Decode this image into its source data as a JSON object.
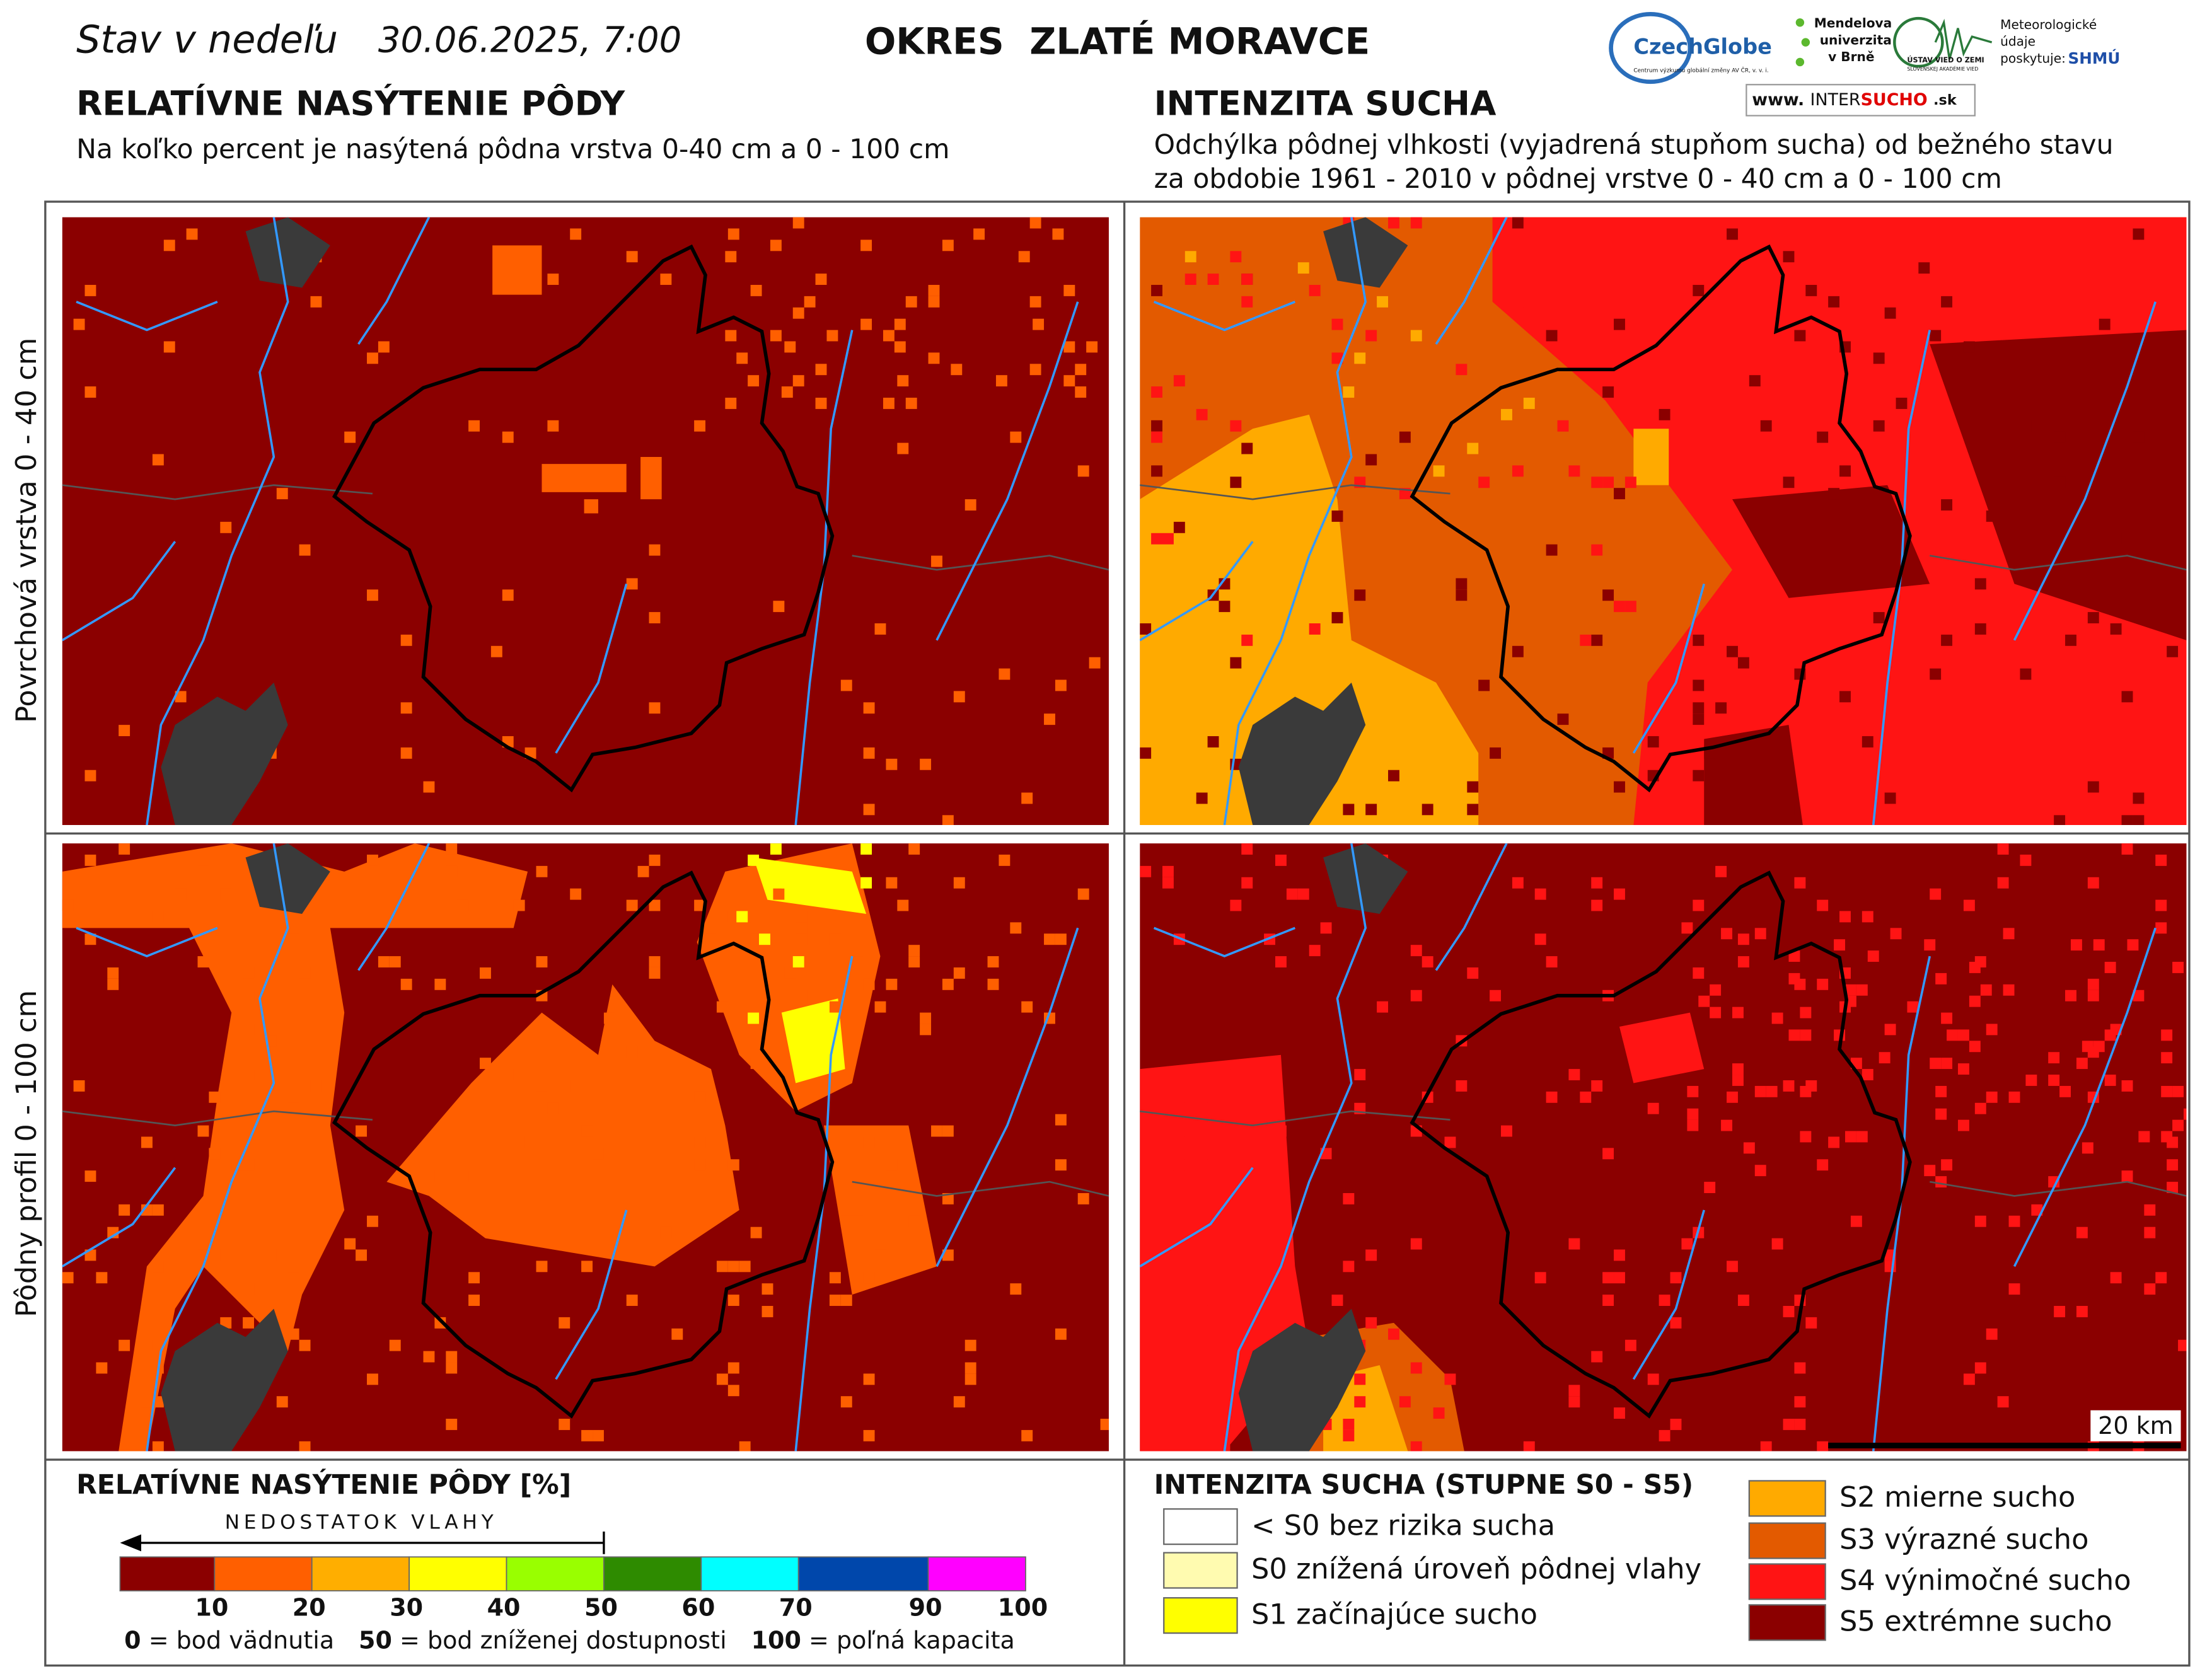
{
  "header": {
    "status": "Stav v nedeľu",
    "date": "30.06.2025, 7:00",
    "district": "OKRES  ZLATÉ MORAVCE"
  },
  "logos": {
    "czechglobe": "CzechGlobe",
    "czechglobe_note": "Centrum výzkumu globální změny AV ČR, v. v. i.",
    "mendel": [
      "Mendelova",
      "univerzita",
      "v Brně"
    ],
    "uvz": "ÚSTAV VIED O ZEMI",
    "uvz_note": "SLOVENSKEJ AKADÉMIE VIED",
    "meteo": [
      "Meteorologické",
      "údaje",
      "poskytuje:"
    ],
    "shmu": "SHMÚ",
    "intersucho": [
      "www.",
      "INTER",
      "SUCHO",
      ".sk"
    ]
  },
  "left": {
    "title": "RELATÍVNE NASÝTENIE PÔDY",
    "subtitle": "Na koľko percent je nasýtená pôdna vrstva 0-40 cm a 0 - 100 cm"
  },
  "right": {
    "title": "INTENZITA SUCHA",
    "subtitle": [
      "Odchýlka pôdnej vlhkosti (vyjadrená stupňom sucha) od bežného stavu",
      "za obdobie 1961 - 2010 v pôdnej vrstve 0 - 40 cm a 0 - 100 cm"
    ]
  },
  "rows": [
    "Povrchová vrstva 0 - 40 cm",
    "Pôdny profil 0 - 100 cm"
  ],
  "scale_bar": "20 km",
  "legend_left": {
    "title": "RELATÍVNE NASÝTENIE PÔDY [%]",
    "arrow": "NEDOSTATOK VLAHY",
    "colors": [
      "#8b0000",
      "#ff5f00",
      "#ffae00",
      "#ffff00",
      "#99ff00",
      "#2e8b00",
      "#00ffff",
      "#0047ab",
      "#ff00ff"
    ],
    "ticks": [
      10,
      20,
      30,
      40,
      50,
      60,
      70,
      90,
      100
    ],
    "notes": [
      {
        "value": "0",
        "text": "= bod vädnutia"
      },
      {
        "value": "50",
        "text": "= bod zníženej dostupnosti"
      },
      {
        "value": "100",
        "text": "= poľná kapacita"
      }
    ]
  },
  "legend_right": {
    "title": "INTENZITA SUCHA (STUPNE S0 - S5)",
    "items": [
      {
        "label": "< S0 bez rizika sucha",
        "color": "#ffffff"
      },
      {
        "label": "S0 znížená úroveň pôdnej vlahy",
        "color": "#fffbb0"
      },
      {
        "label": "S1 začínajúce sucho",
        "color": "#ffff00"
      },
      {
        "label": "S2 mierne sucho",
        "color": "#ffaa00"
      },
      {
        "label": "S3 výrazné sucho",
        "color": "#e35a00"
      },
      {
        "label": "S4 výnimočné sucho",
        "color": "#ff1414"
      },
      {
        "label": "S5 extrémne sucho",
        "color": "#8b0000"
      }
    ]
  }
}
